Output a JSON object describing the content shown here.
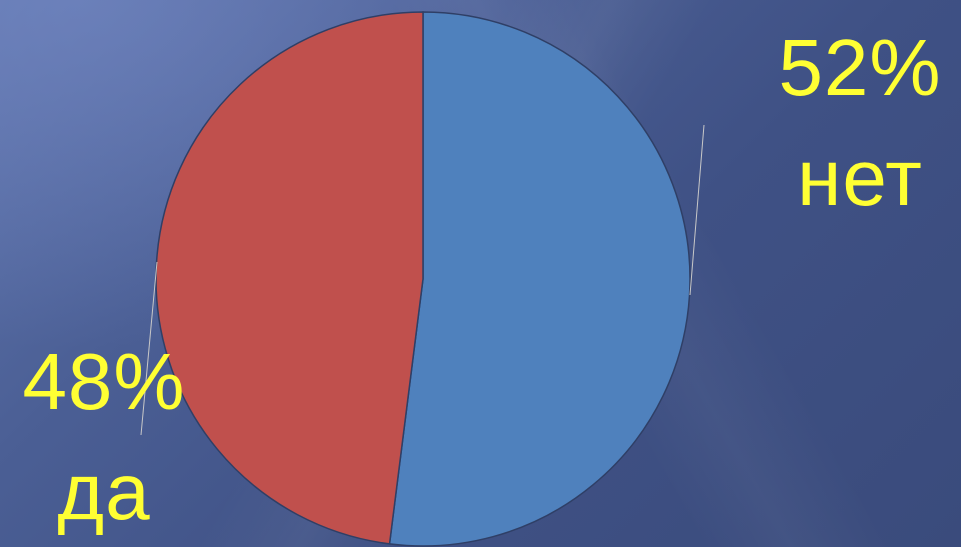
{
  "chart_data": {
    "type": "pie",
    "slices": [
      {
        "category": "нет",
        "value": 52,
        "label": "52%",
        "color": "#4f81bd"
      },
      {
        "category": "да",
        "value": 48,
        "label": "48%",
        "color": "#c0504d"
      }
    ],
    "title": "",
    "legend": "none",
    "label_color": "#ffff33"
  }
}
